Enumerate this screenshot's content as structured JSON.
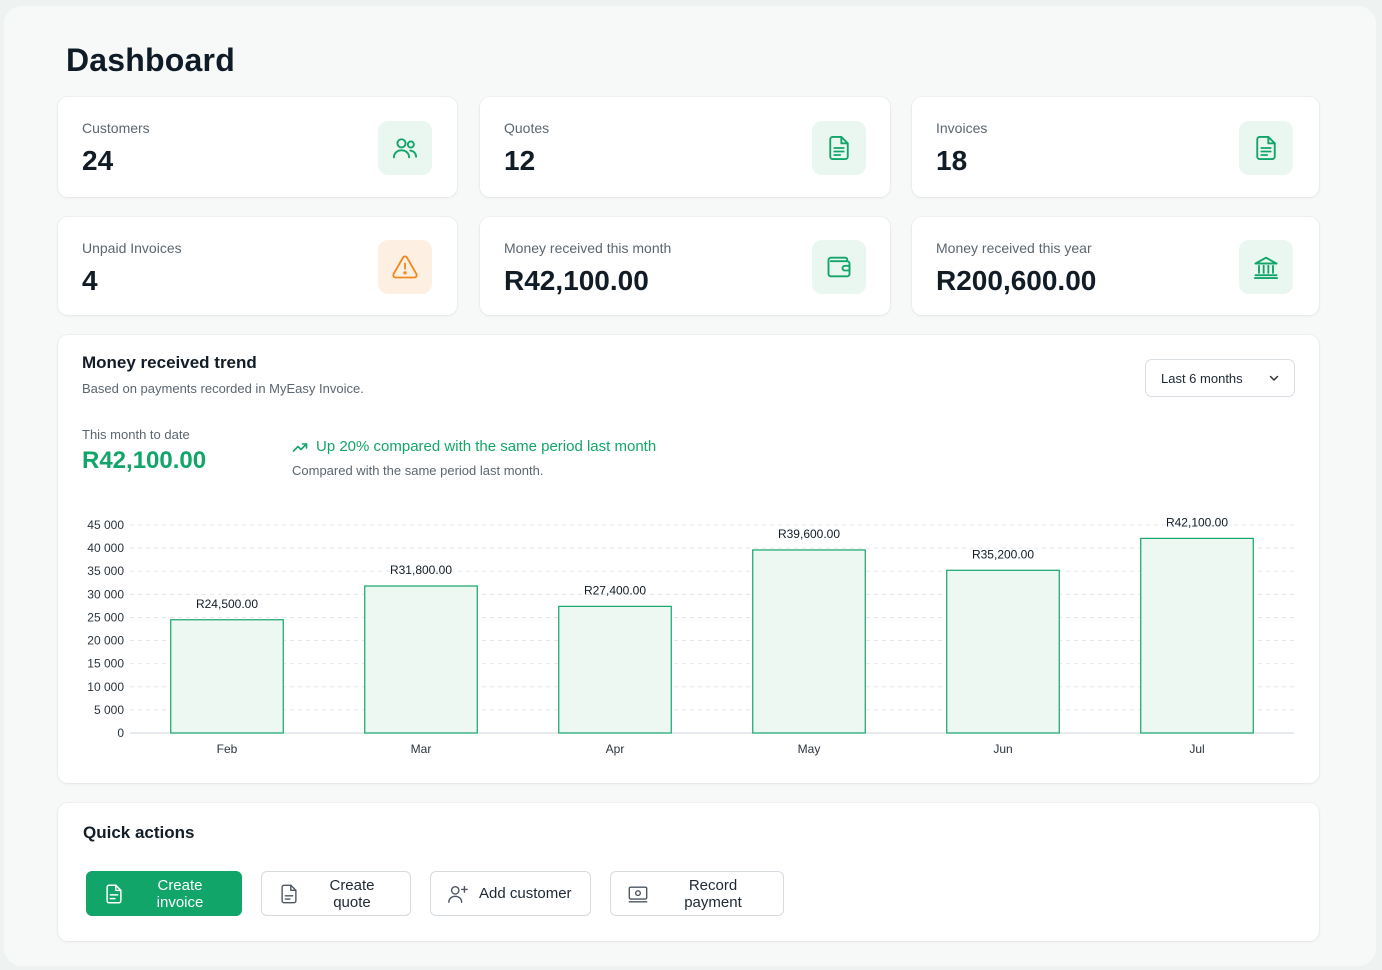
{
  "page": {
    "title": "Dashboard"
  },
  "colors": {
    "accent": "#12a56a",
    "warning": "#ef8a23",
    "bar_fill": "#eef8f2",
    "bar_stroke": "#12a56a"
  },
  "stats": [
    {
      "label": "Customers",
      "value": "24",
      "icon": "users-icon",
      "tone": "green"
    },
    {
      "label": "Quotes",
      "value": "12",
      "icon": "document-icon",
      "tone": "green"
    },
    {
      "label": "Invoices",
      "value": "18",
      "icon": "document-icon",
      "tone": "green"
    },
    {
      "label": "Unpaid Invoices",
      "value": "4",
      "icon": "warning-icon",
      "tone": "orange"
    },
    {
      "label": "Money received this month",
      "value": "R42,100.00",
      "icon": "wallet-icon",
      "tone": "green"
    },
    {
      "label": "Money received this year",
      "value": "R200,600.00",
      "icon": "bank-icon",
      "tone": "green"
    }
  ],
  "trend": {
    "title": "Money received trend",
    "subtitle": "Based on payments recorded in MyEasy Invoice.",
    "range_selected": "Last 6 months",
    "mtd_label": "This month to date",
    "mtd_value": "R42,100.00",
    "change_text": "Up 20% compared with the same period last month",
    "change_sub": "Compared with the same period last month."
  },
  "chart_data": {
    "type": "bar",
    "categories": [
      "Feb",
      "Mar",
      "Apr",
      "May",
      "Jun",
      "Jul"
    ],
    "values": [
      24500,
      31800,
      27400,
      39600,
      35200,
      42100
    ],
    "data_labels": [
      "R24,500.00",
      "R31,800.00",
      "R27,400.00",
      "R39,600.00",
      "R35,200.00",
      "R42,100.00"
    ],
    "ylim": [
      0,
      45000
    ],
    "yticks": [
      0,
      5000,
      10000,
      15000,
      20000,
      25000,
      30000,
      35000,
      40000,
      45000
    ],
    "ytick_labels": [
      "0",
      "5 000",
      "10 000",
      "15 000",
      "20 000",
      "25 000",
      "30 000",
      "35 000",
      "40 000",
      "45 000"
    ],
    "grid": true,
    "title": "",
    "xlabel": "",
    "ylabel": ""
  },
  "quick_actions": {
    "title": "Quick actions",
    "buttons": [
      {
        "label": "Create invoice",
        "icon": "invoice-icon"
      },
      {
        "label": "Create quote",
        "icon": "document-icon"
      },
      {
        "label": "Add customer",
        "icon": "add-user-icon"
      },
      {
        "label": "Record payment",
        "icon": "payment-icon"
      }
    ]
  }
}
